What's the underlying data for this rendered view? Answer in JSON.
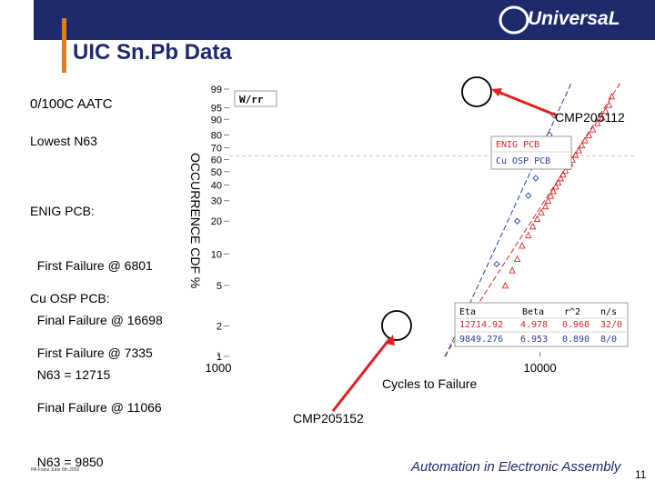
{
  "header": {
    "logo_text": "UniversaL",
    "title": "UIC Sn.Pb Data"
  },
  "sidebar": {
    "aatc": "0/100C AATC",
    "lowest": "Lowest N63",
    "enig_lines": [
      "ENIG PCB:",
      "  First Failure @ 6801",
      "  Final Failure @ 16698",
      "  N63 = 12715"
    ],
    "osp_lines": [
      "Cu OSP PCB:",
      "  First Failure @ 7335",
      "  Final Failure @ 11066",
      "  N63 = 9850"
    ]
  },
  "annotations": {
    "callout_top": "CMP205112",
    "callout_bottom": "CMP205152"
  },
  "chart_data": {
    "type": "scatter",
    "method_label": "W/rr",
    "xlabel": "Cycles to Failure",
    "ylabel": "OCCURRENCE CDF %",
    "x_scale": "log",
    "y_scale": "weibull",
    "xlim": [
      1000,
      20000
    ],
    "ylim": [
      1,
      99
    ],
    "x_ticks": [
      "1000",
      "10000"
    ],
    "y_ticks": [
      "1",
      "2",
      "5",
      "10",
      "20",
      "30",
      "40",
      "50",
      "60",
      "70",
      "80",
      "90",
      "95",
      "99"
    ],
    "legend": [
      "ENIG PCB",
      "Cu OSP PCB"
    ],
    "series": [
      {
        "name": "ENIG PCB",
        "color": "#d9262b",
        "points": [
          {
            "x": 6801,
            "y": 3
          },
          {
            "x": 7800,
            "y": 5
          },
          {
            "x": 8200,
            "y": 7
          },
          {
            "x": 8500,
            "y": 9
          },
          {
            "x": 8800,
            "y": 12
          },
          {
            "x": 9200,
            "y": 15
          },
          {
            "x": 9500,
            "y": 18
          },
          {
            "x": 9800,
            "y": 21
          },
          {
            "x": 10100,
            "y": 24
          },
          {
            "x": 10400,
            "y": 27
          },
          {
            "x": 10600,
            "y": 30
          },
          {
            "x": 10800,
            "y": 33
          },
          {
            "x": 11000,
            "y": 36
          },
          {
            "x": 11200,
            "y": 39
          },
          {
            "x": 11400,
            "y": 42
          },
          {
            "x": 11600,
            "y": 45
          },
          {
            "x": 11800,
            "y": 48
          },
          {
            "x": 12000,
            "y": 51
          },
          {
            "x": 12200,
            "y": 54
          },
          {
            "x": 12400,
            "y": 57
          },
          {
            "x": 12600,
            "y": 60
          },
          {
            "x": 12900,
            "y": 64
          },
          {
            "x": 13200,
            "y": 68
          },
          {
            "x": 13500,
            "y": 72
          },
          {
            "x": 13800,
            "y": 76
          },
          {
            "x": 14200,
            "y": 80
          },
          {
            "x": 14600,
            "y": 84
          },
          {
            "x": 15100,
            "y": 88
          },
          {
            "x": 15600,
            "y": 91
          },
          {
            "x": 16000,
            "y": 94
          },
          {
            "x": 16400,
            "y": 96
          },
          {
            "x": 16698,
            "y": 98
          }
        ],
        "fit": {
          "eta": 12714.92,
          "beta": 4.978
        }
      },
      {
        "name": "Cu OSP PCB",
        "color": "#2b3d9e",
        "points": [
          {
            "x": 7335,
            "y": 8
          },
          {
            "x": 8500,
            "y": 20
          },
          {
            "x": 9200,
            "y": 33
          },
          {
            "x": 9700,
            "y": 45
          },
          {
            "x": 10100,
            "y": 57
          },
          {
            "x": 10400,
            "y": 69
          },
          {
            "x": 10700,
            "y": 80
          },
          {
            "x": 11066,
            "y": 92
          }
        ],
        "fit": {
          "eta": 9849.276,
          "beta": 6.953
        }
      }
    ],
    "table": {
      "headers": [
        "Eta",
        "Beta",
        "r^2",
        "n/s"
      ],
      "rows": [
        [
          "12714.92",
          "4.978",
          "0.960",
          "32/0"
        ],
        [
          "9849.276",
          "6.953",
          "0.890",
          "8/0"
        ]
      ]
    }
  },
  "footer": {
    "left": "PA Franz June 5th 2002",
    "tagline": "Automation in Electronic Assembly",
    "page": "11"
  }
}
